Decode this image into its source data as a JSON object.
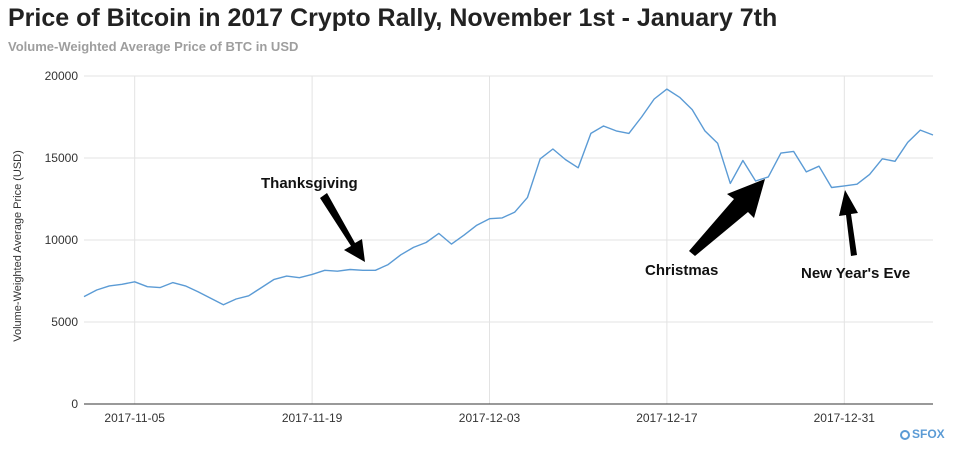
{
  "chart_data": {
    "type": "line",
    "title": "Price of Bitcoin in 2017 Crypto Rally, November 1st - January 7th",
    "subtitle": "Volume-Weighted Average Price of BTC in USD",
    "xlabel": "",
    "ylabel": "Volume-Weighted Average Price (USD)",
    "ylim": [
      0,
      20000
    ],
    "yticks": [
      0,
      5000,
      10000,
      15000,
      20000
    ],
    "xticks": [
      "2017-11-05",
      "2017-11-19",
      "2017-12-03",
      "2017-12-17",
      "2017-12-31"
    ],
    "x_start": "2017-11-01",
    "x_end": "2018-01-07",
    "grid": true,
    "series": [
      {
        "color": "#5b9bd5",
        "values": [
          6550,
          6950,
          7200,
          7300,
          7450,
          7150,
          7100,
          7400,
          7200,
          6850,
          6450,
          6050,
          6400,
          6600,
          7100,
          7600,
          7800,
          7700,
          7900,
          8150,
          8100,
          8200,
          8150,
          8150,
          8500,
          9100,
          9550,
          9850,
          10400,
          9750,
          10300,
          10900,
          11300,
          11350,
          11700,
          12600,
          14950,
          15550,
          14900,
          14400,
          16500,
          16950,
          16650,
          16500,
          17500,
          18600,
          19200,
          18700,
          17950,
          16650,
          15900,
          13450,
          14850,
          13600,
          13850,
          15300,
          15400,
          14150,
          14500,
          13200,
          13300,
          13400,
          14000,
          14950,
          14800,
          15950,
          16700,
          16400
        ]
      }
    ],
    "annotations": [
      {
        "text": "Thanksgiving",
        "date": "2017-11-23"
      },
      {
        "text": "Christmas",
        "date": "2017-12-25"
      },
      {
        "text": "New Year's Eve",
        "date": "2017-12-31"
      }
    ]
  },
  "logo": {
    "text": "SFOX"
  }
}
